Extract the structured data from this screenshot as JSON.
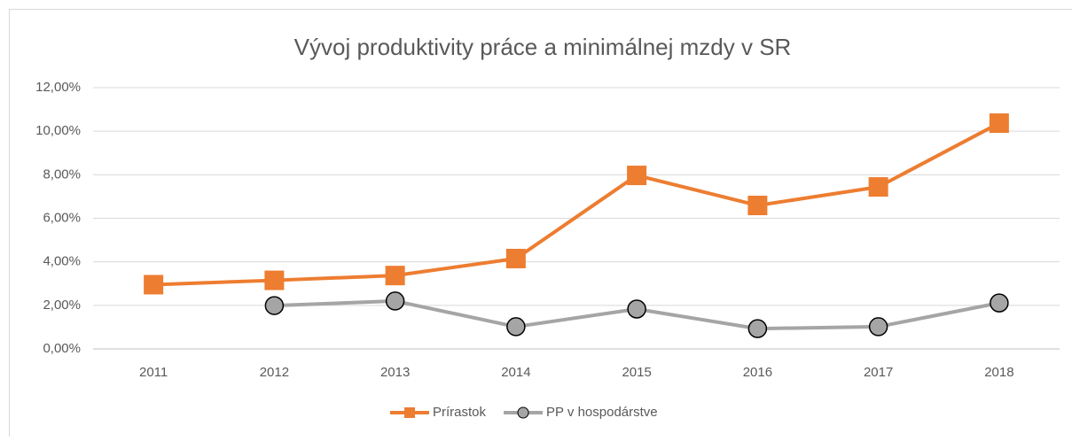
{
  "chart_data": {
    "type": "line",
    "title": "Vývoj produktivity práce a minimálnej mzdy v SR",
    "categories": [
      "2011",
      "2012",
      "2013",
      "2014",
      "2015",
      "2016",
      "2017",
      "2018"
    ],
    "series": [
      {
        "name": "Prírastok",
        "color": "#ed7d31",
        "marker": "square",
        "values": [
          2.95,
          3.15,
          3.37,
          4.15,
          7.97,
          6.59,
          7.44,
          10.37
        ]
      },
      {
        "name": "PP v hospodárstve",
        "color": "#a5a5a5",
        "marker": "circle",
        "values": [
          null,
          1.99,
          2.2,
          1.02,
          1.83,
          0.93,
          1.02,
          2.11
        ]
      }
    ],
    "ylim": [
      0,
      12
    ],
    "yticks": [
      {
        "value": 0,
        "label": "0,00%"
      },
      {
        "value": 2,
        "label": "2,00%"
      },
      {
        "value": 4,
        "label": "4,00%"
      },
      {
        "value": 6,
        "label": "6,00%"
      },
      {
        "value": 8,
        "label": "8,00%"
      },
      {
        "value": 10,
        "label": "10,00%"
      },
      {
        "value": 12,
        "label": "12,00%"
      }
    ],
    "grid": true,
    "legend": "bottom"
  }
}
